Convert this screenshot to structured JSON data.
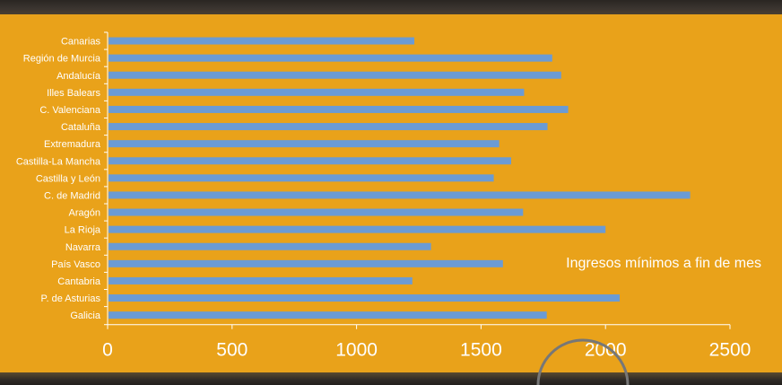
{
  "chart_data": {
    "type": "bar",
    "orientation": "horizontal",
    "categories": [
      "Canarias",
      "Región de Murcia",
      "Andalucía",
      "Illes Balears",
      "C. Valenciana",
      "Cataluña",
      "Extremadura",
      "Castilla-La Mancha",
      "Castilla y León",
      "C. de Madrid",
      "Aragón",
      "La Rioja",
      "Navarra",
      "País Vasco",
      "Cantabria",
      "P. de  Asturias",
      "Galicia"
    ],
    "values": [
      1232,
      1786,
      1822,
      1673,
      1850,
      1767,
      1573,
      1621,
      1551,
      2340,
      1669,
      2000,
      1299,
      1588,
      1224,
      2057,
      1764
    ],
    "xlim": [
      0,
      2500
    ],
    "xticks": [
      "0",
      "500",
      "1000",
      "1500",
      "2000",
      "2500"
    ],
    "annotation": "Ingresos mínimos a fin de mes",
    "title": "",
    "xlabel": "",
    "ylabel": "",
    "bar_color": "#6B9BD4",
    "background_color": "#E9A21A",
    "grid": false
  }
}
